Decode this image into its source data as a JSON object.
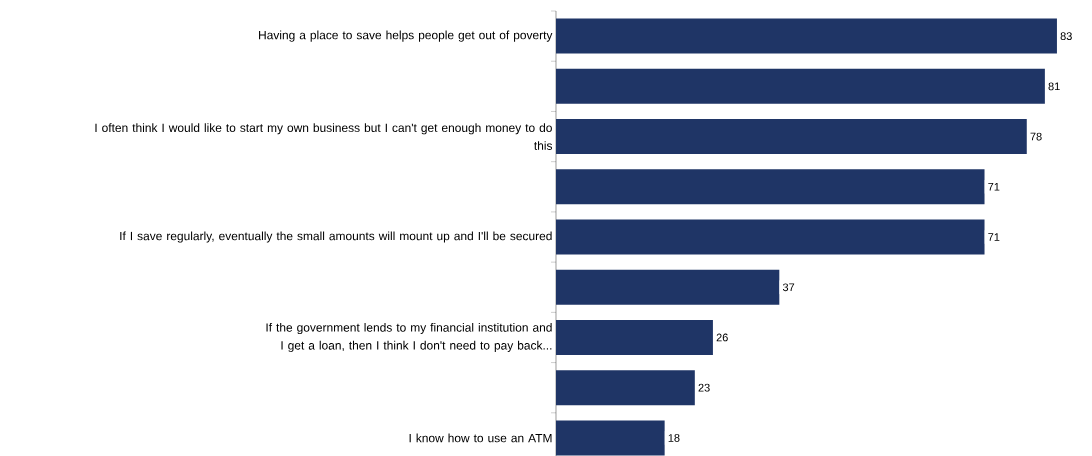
{
  "chart_data": {
    "type": "bar",
    "orientation": "horizontal",
    "categories": [
      "Having a place to save helps people get out of poverty",
      null,
      "I often think I would like to start my own business but I can't get enough money to do this",
      null,
      "If I save regularly, eventually the small amounts will mount up and I'll be secured",
      null,
      "If the government lends to my financial institution and I get a loan, then I think I don't need to pay back...",
      null,
      "I know how to use an ATM"
    ],
    "values": [
      83,
      81,
      78,
      71,
      71,
      37,
      26,
      23,
      18
    ],
    "color": "#1f3566",
    "data_labels": true
  }
}
